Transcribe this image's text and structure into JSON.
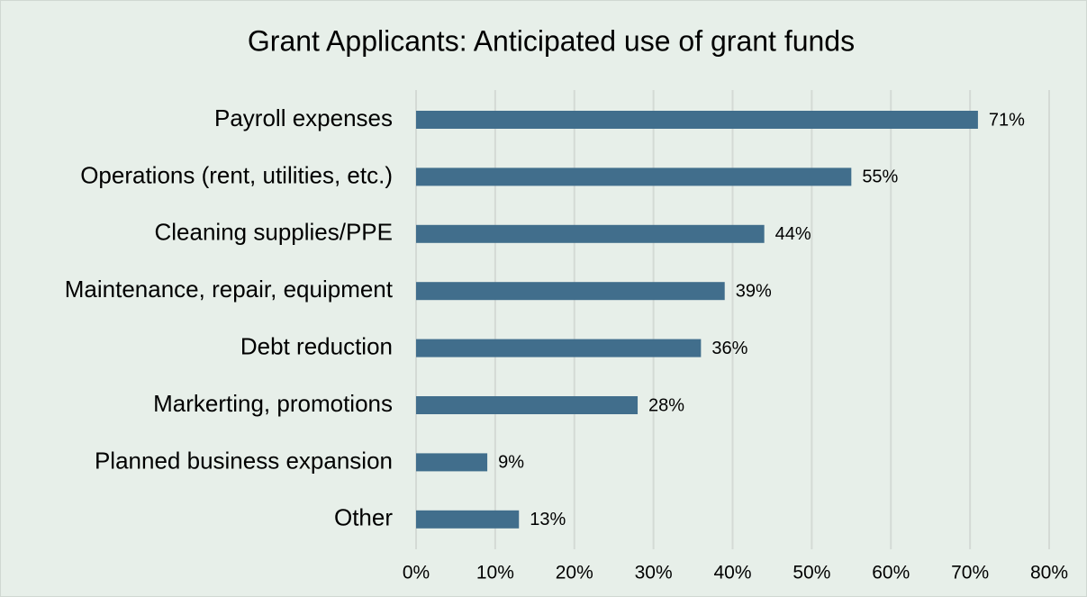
{
  "chart_data": {
    "type": "bar",
    "orientation": "horizontal",
    "title": "Grant Applicants: Anticipated use of grant funds",
    "categories": [
      "Payroll expenses",
      "Operations (rent, utilities, etc.)",
      "Cleaning supplies/PPE",
      "Maintenance, repair, equipment",
      "Debt reduction",
      "Markerting, promotions",
      "Planned business expansion",
      "Other"
    ],
    "values": [
      71,
      55,
      44,
      39,
      36,
      28,
      9,
      13
    ],
    "value_labels": [
      "71%",
      "55%",
      "44%",
      "39%",
      "36%",
      "28%",
      "9%",
      "13%"
    ],
    "color": "#416e8c",
    "xlim": [
      0,
      80
    ],
    "xticks": [
      {
        "value": 0,
        "label": "0%"
      },
      {
        "value": 10,
        "label": "10%"
      },
      {
        "value": 20,
        "label": "20%"
      },
      {
        "value": 30,
        "label": "30%"
      },
      {
        "value": 40,
        "label": "40%"
      },
      {
        "value": 50,
        "label": "50%"
      },
      {
        "value": 60,
        "label": "60%"
      },
      {
        "value": 70,
        "label": "70%"
      },
      {
        "value": 80,
        "label": "80%"
      }
    ],
    "grid": true
  }
}
